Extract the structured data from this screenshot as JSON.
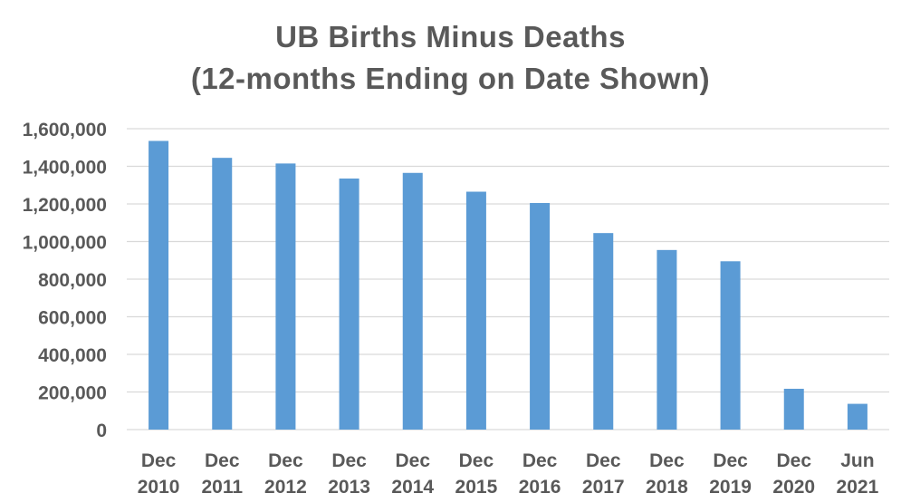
{
  "chart_data": {
    "type": "bar",
    "title_lines": [
      "UB Births Minus Deaths",
      "(12-months Ending on Date Shown)"
    ],
    "categories": [
      [
        "Dec",
        "2010"
      ],
      [
        "Dec",
        "2011"
      ],
      [
        "Dec",
        "2012"
      ],
      [
        "Dec",
        "2013"
      ],
      [
        "Dec",
        "2014"
      ],
      [
        "Dec",
        "2015"
      ],
      [
        "Dec",
        "2016"
      ],
      [
        "Dec",
        "2017"
      ],
      [
        "Dec",
        "2018"
      ],
      [
        "Dec",
        "2019"
      ],
      [
        "Dec",
        "2020"
      ],
      [
        "Jun",
        "2021"
      ]
    ],
    "values": [
      1535000,
      1445000,
      1415000,
      1335000,
      1365000,
      1265000,
      1205000,
      1045000,
      955000,
      895000,
      217000,
      137000
    ],
    "xlabel": "",
    "ylabel": "",
    "ylim": [
      0,
      1600000
    ],
    "yticks": [
      0,
      200000,
      400000,
      600000,
      800000,
      1000000,
      1200000,
      1400000,
      1600000
    ],
    "ytick_labels": [
      "0",
      "200,000",
      "400,000",
      "600,000",
      "800,000",
      "1,000,000",
      "1,200,000",
      "1,400,000",
      "1,600,000"
    ],
    "grid": true,
    "legend": "none"
  },
  "colors": {
    "bar": "#5b9bd5",
    "grid": "#d9d9d9",
    "text": "#595959"
  }
}
